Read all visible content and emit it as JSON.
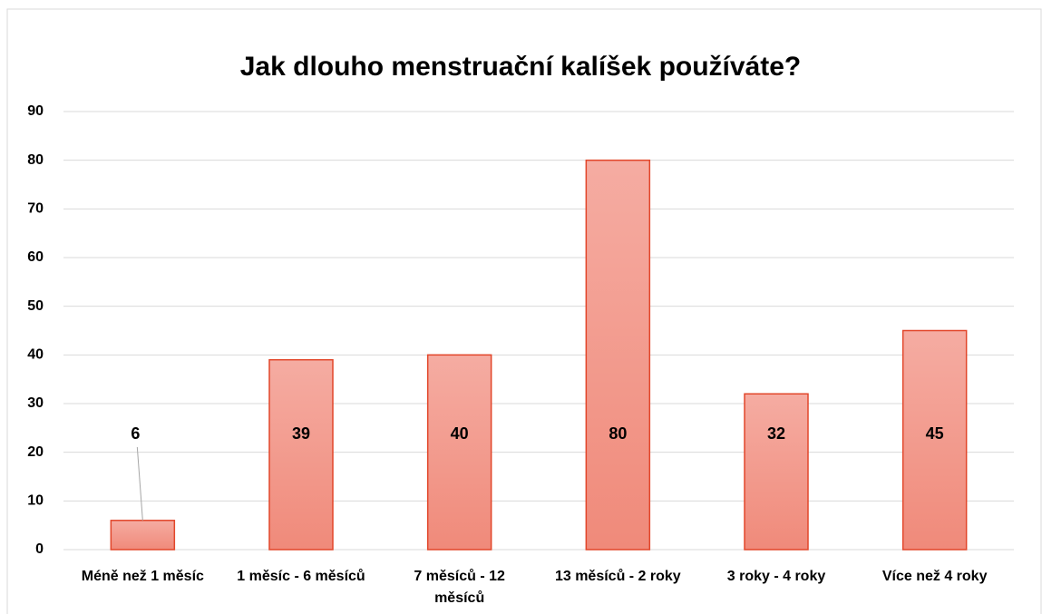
{
  "chart_data": {
    "type": "bar",
    "title": "Jak dlouho menstruační kalíšek používáte?",
    "categories": [
      "Méně než 1 měsíc",
      "1 měsíc - 6 měsíců",
      "7 měsíců - 12 měsíců",
      "13 měsíců - 2 roky",
      "3 roky - 4 roky",
      "Více než 4 roky"
    ],
    "values": [
      6,
      39,
      40,
      80,
      32,
      45
    ],
    "color": "#f08c7c",
    "ylim": [
      0,
      90
    ],
    "yticks": [
      0,
      10,
      20,
      30,
      40,
      50,
      60,
      70,
      80,
      90
    ],
    "grid": true
  }
}
